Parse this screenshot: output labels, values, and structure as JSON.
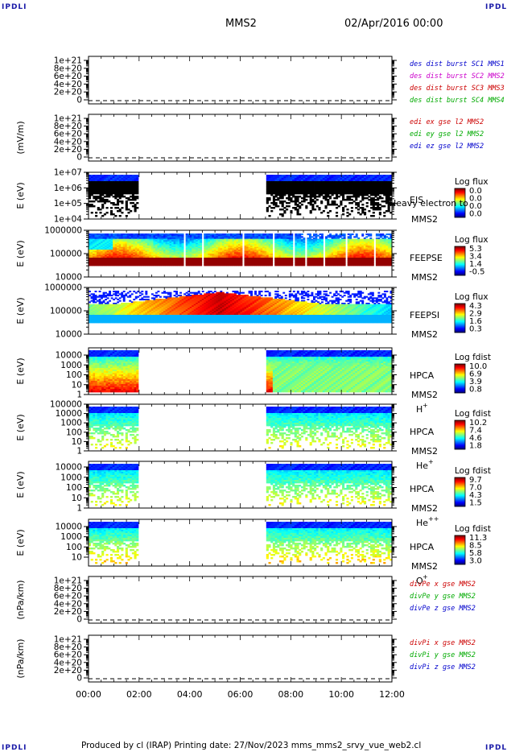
{
  "corner_tag": "IPDLI",
  "header": {
    "spacecraft": "MMS2",
    "date": "02/Apr/2016 00:00"
  },
  "footer": {
    "text": "Produced by cl (IRAP)   Printing date: 27/Nov/2023   mms_mms2_srvy_vue_web2.cl"
  },
  "chart_data": [
    {
      "type": "line",
      "id": "p1",
      "ylabel": "",
      "yticks": [
        "1e+21",
        "8e+20",
        "6e+20",
        "4e+20",
        "2e+20",
        "0"
      ],
      "legend": [
        {
          "name": "des dist burst SC1 MMS1",
          "color": "#0000cc"
        },
        {
          "name": "des dist burst SC2 MMS2",
          "color": "#cc00cc"
        },
        {
          "name": "des dist burst SC3 MMS3",
          "color": "#cc0000"
        },
        {
          "name": "des dist burst SC4 MMS4",
          "color": "#00aa00"
        }
      ],
      "series": []
    },
    {
      "type": "line",
      "id": "p2",
      "ylabel": "(mV/m)",
      "yticks": [
        "1e+21",
        "8e+20",
        "6e+20",
        "4e+20",
        "2e+20",
        "0"
      ],
      "legend": [
        {
          "name": "edi ex gse l2 MMS2",
          "color": "#cc0000"
        },
        {
          "name": "edi ey gse l2 MMS2",
          "color": "#00aa00"
        },
        {
          "name": "edi ez gse l2 MMS2",
          "color": "#0000cc"
        }
      ],
      "series": []
    },
    {
      "type": "heatmap",
      "id": "p3",
      "ylabel": "E (eV)",
      "yticks": [
        "1e+07",
        "1e+06",
        "1e+05",
        "1e+04"
      ],
      "instrument": "EIS",
      "species": "Heavy electron to",
      "sc": "MMS2",
      "colorbar": {
        "title": "Log flux",
        "ticks": [
          "0.0",
          "0.0",
          "0.0",
          "0.0"
        ]
      }
    },
    {
      "type": "heatmap",
      "id": "p4",
      "ylabel": "E (eV)",
      "yticks": [
        "1000000",
        "100000",
        "10000"
      ],
      "instrument": "FEEPSE",
      "sc": "MMS2",
      "colorbar": {
        "title": "Log flux",
        "ticks": [
          "5.3",
          "3.4",
          "1.4",
          "-0.5"
        ]
      }
    },
    {
      "type": "heatmap",
      "id": "p5",
      "ylabel": "E (eV)",
      "yticks": [
        "1000000",
        "100000",
        "10000"
      ],
      "instrument": "FEEPSI",
      "sc": "MMS2",
      "colorbar": {
        "title": "Log flux",
        "ticks": [
          "4.3",
          "2.9",
          "1.6",
          "0.3"
        ]
      }
    },
    {
      "type": "heatmap",
      "id": "p6",
      "ylabel": "E (eV)",
      "yticks": [
        "10000",
        "1000",
        "100",
        "10",
        "1"
      ],
      "instrument": "HPCA",
      "sc": "MMS2",
      "species": "H",
      "species_sup": "+",
      "colorbar": {
        "title": "Log fdist",
        "ticks": [
          "10.0",
          "6.9",
          "3.9",
          "0.8"
        ]
      }
    },
    {
      "type": "heatmap",
      "id": "p7",
      "ylabel": "E (eV)",
      "yticks": [
        "100000",
        "10000",
        "1000",
        "100",
        "10",
        "1"
      ],
      "instrument": "HPCA",
      "sc": "MMS2",
      "species": "He",
      "species_sup": "+",
      "colorbar": {
        "title": "Log fdist",
        "ticks": [
          "10.2",
          "7.4",
          "4.6",
          "1.8"
        ]
      }
    },
    {
      "type": "heatmap",
      "id": "p8",
      "ylabel": "E (eV)",
      "yticks": [
        "10000",
        "1000",
        "100",
        "10",
        "1"
      ],
      "instrument": "HPCA",
      "sc": "MMS2",
      "species": "He",
      "species_sup": "++",
      "colorbar": {
        "title": "Log fdist",
        "ticks": [
          "9.7",
          "7.0",
          "4.3",
          "1.5"
        ]
      }
    },
    {
      "type": "heatmap",
      "id": "p9",
      "ylabel": "E (eV)",
      "yticks": [
        "10000",
        "1000",
        "100",
        "10"
      ],
      "instrument": "HPCA",
      "sc": "MMS2",
      "species": "O",
      "species_sup": "+",
      "colorbar": {
        "title": "Log fdist",
        "ticks": [
          "11.3",
          "8.5",
          "5.8",
          "3.0"
        ]
      }
    },
    {
      "type": "line",
      "id": "p10",
      "ylabel": "(nPa/km)",
      "yticks": [
        "1e+21",
        "8e+20",
        "6e+20",
        "4e+20",
        "2e+20",
        "0"
      ],
      "legend": [
        {
          "name": "divPe x gse MMS2",
          "color": "#cc0000"
        },
        {
          "name": "divPe y gse MMS2",
          "color": "#00aa00"
        },
        {
          "name": "divPe z gse MMS2",
          "color": "#0000cc"
        }
      ],
      "series": []
    },
    {
      "type": "line",
      "id": "p11",
      "ylabel": "(nPa/km)",
      "yticks": [
        "1e+21",
        "8e+20",
        "6e+20",
        "4e+20",
        "2e+20",
        "0"
      ],
      "legend": [
        {
          "name": "divPi x gse MMS2",
          "color": "#cc0000"
        },
        {
          "name": "divPi y gse MMS2",
          "color": "#00aa00"
        },
        {
          "name": "divPi z gse MMS2",
          "color": "#0000cc"
        }
      ],
      "series": []
    }
  ],
  "x_axis": {
    "ticks": [
      "00:00",
      "02:00",
      "04:00",
      "06:00",
      "08:00",
      "10:00",
      "12:00"
    ]
  }
}
